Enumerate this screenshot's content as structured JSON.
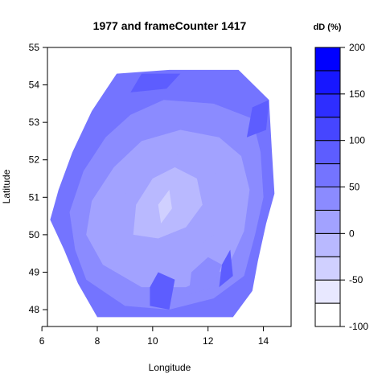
{
  "chart_data": {
    "type": "heatmap",
    "title": "1977 and frameCounter 1417",
    "xlabel": "Longitude",
    "ylabel": "Latitude",
    "xlim": [
      6.2,
      15.0
    ],
    "ylim": [
      47.55,
      55.0
    ],
    "x_ticks": [
      6,
      8,
      10,
      12,
      14
    ],
    "y_ticks": [
      48,
      49,
      50,
      51,
      52,
      53,
      54,
      55
    ],
    "grid": false,
    "legend": {
      "title": "dD (%)",
      "placement": "right",
      "range": [
        -100,
        200
      ],
      "levels": [
        -100,
        -75,
        -50,
        -25,
        0,
        25,
        50,
        75,
        100,
        125,
        150,
        175,
        200
      ],
      "colors": [
        "#ffffff",
        "#e8e8ff",
        "#d0d0ff",
        "#b9b9ff",
        "#a2a2ff",
        "#8b8bff",
        "#7474ff",
        "#5d5dff",
        "#4646ff",
        "#2e2eff",
        "#1717ff",
        "#0000ff"
      ],
      "tick_labels": [
        "200",
        "150",
        "100",
        "50",
        "0",
        "-50",
        "-100"
      ],
      "tick_values": [
        200,
        150,
        100,
        50,
        0,
        -50,
        -100
      ]
    },
    "outline_lonlat": [
      [
        8.0,
        47.8
      ],
      [
        12.9,
        47.8
      ],
      [
        13.6,
        48.5
      ],
      [
        13.8,
        49.3
      ],
      [
        14.1,
        50.3
      ],
      [
        14.4,
        51.1
      ],
      [
        14.3,
        52.3
      ],
      [
        14.2,
        53.6
      ],
      [
        13.1,
        54.4
      ],
      [
        10.6,
        54.4
      ],
      [
        8.7,
        54.3
      ],
      [
        7.8,
        53.3
      ],
      [
        7.1,
        52.2
      ],
      [
        6.6,
        51.2
      ],
      [
        6.3,
        50.4
      ],
      [
        6.8,
        49.6
      ],
      [
        7.3,
        48.7
      ],
      [
        8.0,
        47.8
      ]
    ],
    "contour_regions": [
      {
        "value": 60,
        "points": [
          [
            8.0,
            47.8
          ],
          [
            12.9,
            47.8
          ],
          [
            13.6,
            48.5
          ],
          [
            13.8,
            49.3
          ],
          [
            14.1,
            50.3
          ],
          [
            14.4,
            51.1
          ],
          [
            14.3,
            52.3
          ],
          [
            14.2,
            53.6
          ],
          [
            13.1,
            54.4
          ],
          [
            10.6,
            54.4
          ],
          [
            8.7,
            54.3
          ],
          [
            7.8,
            53.3
          ],
          [
            7.1,
            52.2
          ],
          [
            6.6,
            51.2
          ],
          [
            6.3,
            50.4
          ],
          [
            6.8,
            49.6
          ],
          [
            7.3,
            48.7
          ]
        ]
      },
      {
        "value": 40,
        "points": [
          [
            7.6,
            48.8
          ],
          [
            9.0,
            48.1
          ],
          [
            10.6,
            48.0
          ],
          [
            12.2,
            48.3
          ],
          [
            13.3,
            48.9
          ],
          [
            13.7,
            50.0
          ],
          [
            14.0,
            51.0
          ],
          [
            13.9,
            52.2
          ],
          [
            13.6,
            53.1
          ],
          [
            12.2,
            53.5
          ],
          [
            10.4,
            53.6
          ],
          [
            9.2,
            53.2
          ],
          [
            8.3,
            52.6
          ],
          [
            7.5,
            51.7
          ],
          [
            7.0,
            50.6
          ],
          [
            7.2,
            49.6
          ]
        ]
      },
      {
        "value": 20,
        "points": [
          [
            8.2,
            49.2
          ],
          [
            9.6,
            48.6
          ],
          [
            11.2,
            48.6
          ],
          [
            12.7,
            49.1
          ],
          [
            13.3,
            50.1
          ],
          [
            13.5,
            51.2
          ],
          [
            13.2,
            52.1
          ],
          [
            12.4,
            52.6
          ],
          [
            11.0,
            52.8
          ],
          [
            9.6,
            52.5
          ],
          [
            8.6,
            51.8
          ],
          [
            7.8,
            50.9
          ],
          [
            7.6,
            50.0
          ]
        ]
      },
      {
        "value": 5,
        "points": [
          [
            8.7,
            49.7
          ],
          [
            10.0,
            49.3
          ],
          [
            11.3,
            49.5
          ],
          [
            12.4,
            50.1
          ],
          [
            12.6,
            51.0
          ],
          [
            12.2,
            51.8
          ],
          [
            11.3,
            52.2
          ],
          [
            10.1,
            52.0
          ],
          [
            9.2,
            51.3
          ],
          [
            8.5,
            50.5
          ]
        ]
      },
      {
        "value": -15,
        "points": [
          [
            9.3,
            50.0
          ],
          [
            10.2,
            49.9
          ],
          [
            11.2,
            50.2
          ],
          [
            11.8,
            50.8
          ],
          [
            11.6,
            51.5
          ],
          [
            10.8,
            51.8
          ],
          [
            10.0,
            51.5
          ],
          [
            9.4,
            50.8
          ]
        ]
      },
      {
        "value": -40,
        "points": [
          [
            10.3,
            50.3
          ],
          [
            10.7,
            50.7
          ],
          [
            10.6,
            51.2
          ],
          [
            10.2,
            50.8
          ]
        ]
      },
      {
        "value": 25,
        "points": [
          [
            11.3,
            48.4
          ],
          [
            12.2,
            48.6
          ],
          [
            12.5,
            49.2
          ],
          [
            12.0,
            49.4
          ],
          [
            11.4,
            49.0
          ]
        ]
      },
      {
        "value": 80,
        "points": [
          [
            12.4,
            48.6
          ],
          [
            12.9,
            48.9
          ],
          [
            12.8,
            49.6
          ],
          [
            12.5,
            49.2
          ]
        ]
      },
      {
        "value": 90,
        "points": [
          [
            13.4,
            52.6
          ],
          [
            14.1,
            52.8
          ],
          [
            14.2,
            53.6
          ],
          [
            13.6,
            53.4
          ]
        ]
      },
      {
        "value": 75,
        "points": [
          [
            9.2,
            53.8
          ],
          [
            10.5,
            53.9
          ],
          [
            11.0,
            54.3
          ],
          [
            9.6,
            54.3
          ]
        ]
      },
      {
        "value": 85,
        "points": [
          [
            9.9,
            48.1
          ],
          [
            10.6,
            48.0
          ],
          [
            10.8,
            48.8
          ],
          [
            10.2,
            49.0
          ],
          [
            9.9,
            48.6
          ]
        ]
      }
    ]
  }
}
